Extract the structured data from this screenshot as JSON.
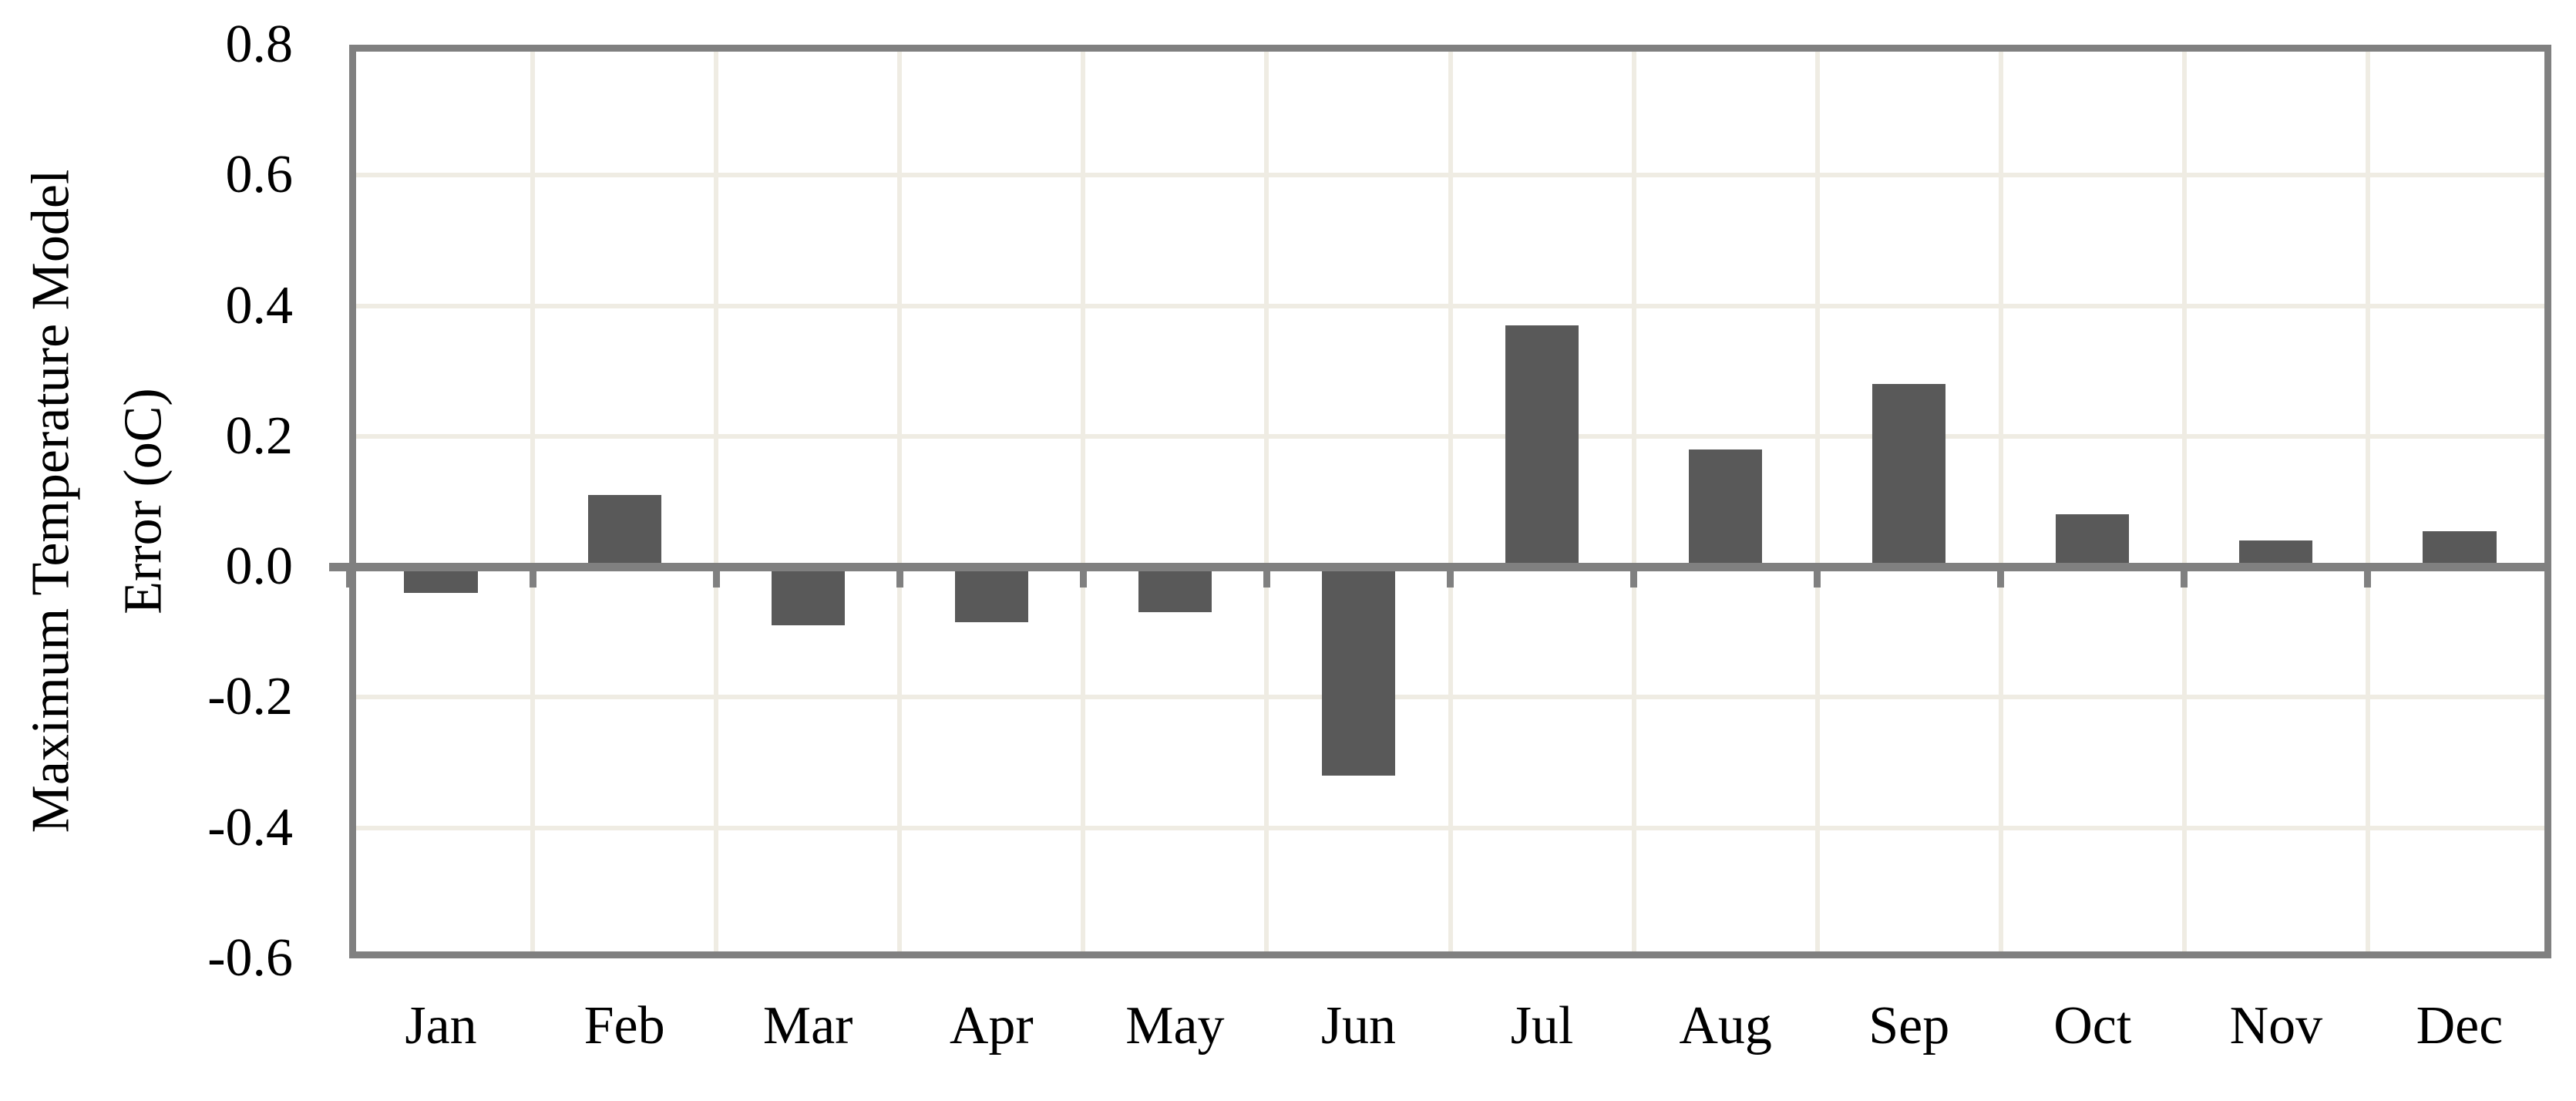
{
  "figure": {
    "background": "#ffffff",
    "text_color": "#000000"
  },
  "chart_data": {
    "type": "bar",
    "title": "",
    "categories": [
      "Jan",
      "Feb",
      "Mar",
      "Apr",
      "May",
      "Jun",
      "Jul",
      "Aug",
      "Sep",
      "Oct",
      "Nov",
      "Dec"
    ],
    "values": [
      -0.04,
      0.11,
      -0.09,
      -0.085,
      -0.07,
      -0.32,
      0.37,
      0.18,
      0.28,
      0.08,
      0.04,
      0.055
    ],
    "ylabel_line1": "Maximum Temperature Model",
    "ylabel_line2": "Error (oC)",
    "xlabel": "",
    "ylim": [
      -0.6,
      0.8
    ],
    "ytick_step": 0.2,
    "yticks": [
      0.8,
      0.6,
      0.4,
      0.2,
      0.0,
      -0.2,
      -0.4,
      -0.6
    ],
    "ytick_labels": [
      "0.8",
      "0.6",
      "0.4",
      "0.2",
      "0.0",
      "-0.2",
      "-0.4",
      "-0.6"
    ],
    "grid": true,
    "legend_position": "none",
    "bar_gap_fraction": 0.6,
    "bar_color": "#595959",
    "axis_color": "#808080",
    "grid_color": "#EFECE3"
  }
}
